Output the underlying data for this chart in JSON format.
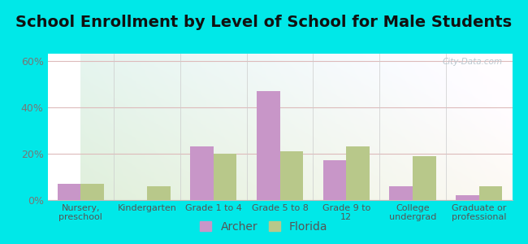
{
  "title": "School Enrollment by Level of School for Male Students",
  "categories": [
    "Nursery,\npreschool",
    "Kindergarten",
    "Grade 1 to 4",
    "Grade 5 to 8",
    "Grade 9 to\n12",
    "College\nundergrad",
    "Graduate or\nprofessional"
  ],
  "archer_values": [
    7,
    0,
    23,
    47,
    17,
    6,
    2
  ],
  "florida_values": [
    7,
    6,
    20,
    21,
    23,
    19,
    6
  ],
  "archer_color": "#c896c8",
  "florida_color": "#b8c88a",
  "background_color": "#00e8e8",
  "title_fontsize": 14,
  "tick_label_fontsize": 8,
  "ylim": [
    0,
    63
  ],
  "yticks": [
    0,
    20,
    40,
    60
  ],
  "ytick_labels": [
    "0%",
    "20%",
    "40%",
    "60%"
  ],
  "bar_width": 0.35,
  "legend_labels": [
    "Archer",
    "Florida"
  ],
  "watermark": "City-Data.com"
}
